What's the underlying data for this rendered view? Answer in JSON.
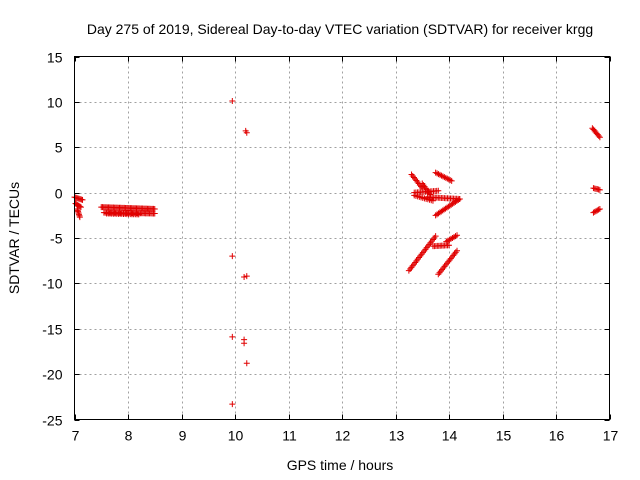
{
  "chart_data": {
    "type": "scatter",
    "title": "Day 275 of 2019, Sidereal Day-to-day VTEC variation (SDTVAR) for receiver krgg",
    "xlabel": "GPS time / hours",
    "ylabel": "SDTVAR / TECUs",
    "xlim": [
      7,
      17
    ],
    "ylim": [
      -25,
      15
    ],
    "xticks": [
      7,
      8,
      9,
      10,
      11,
      12,
      13,
      14,
      15,
      16,
      17
    ],
    "yticks": [
      -25,
      -20,
      -15,
      -10,
      -5,
      0,
      5,
      10,
      15
    ],
    "grid": true,
    "marker": "+",
    "color": "#e00000",
    "singles": [
      {
        "x": 9.95,
        "y": 10.1
      },
      {
        "x": 10.2,
        "y": 6.8
      },
      {
        "x": 10.22,
        "y": 6.6
      },
      {
        "x": 9.95,
        "y": -7.0
      },
      {
        "x": 10.17,
        "y": -9.3
      },
      {
        "x": 10.22,
        "y": -9.2
      },
      {
        "x": 9.95,
        "y": -15.9
      },
      {
        "x": 10.17,
        "y": -16.2
      },
      {
        "x": 10.17,
        "y": -16.6
      },
      {
        "x": 10.22,
        "y": -18.8
      },
      {
        "x": 9.95,
        "y": -23.3
      }
    ],
    "segments": [
      {
        "x0": 7.0,
        "y0": -0.5,
        "x1": 7.15,
        "y1": -0.8,
        "n": 8
      },
      {
        "x0": 7.02,
        "y0": -1.2,
        "x1": 7.12,
        "y1": -1.6,
        "n": 6
      },
      {
        "x0": 7.05,
        "y0": -1.8,
        "x1": 7.1,
        "y1": -2.7,
        "n": 7
      },
      {
        "x0": 7.5,
        "y0": -1.6,
        "x1": 8.5,
        "y1": -1.8,
        "n": 45
      },
      {
        "x0": 7.55,
        "y0": -2.2,
        "x1": 8.5,
        "y1": -2.3,
        "n": 40
      },
      {
        "x0": 7.6,
        "y0": -2.3,
        "x1": 8.2,
        "y1": -2.4,
        "n": 20
      },
      {
        "x0": 13.3,
        "y0": 2.0,
        "x1": 13.5,
        "y1": 0.5,
        "n": 10
      },
      {
        "x0": 13.35,
        "y0": 0.0,
        "x1": 13.8,
        "y1": 0.2,
        "n": 16
      },
      {
        "x0": 13.35,
        "y0": -0.3,
        "x1": 13.7,
        "y1": -0.9,
        "n": 12
      },
      {
        "x0": 13.5,
        "y0": 1.0,
        "x1": 13.65,
        "y1": -0.2,
        "n": 8
      },
      {
        "x0": 13.75,
        "y0": 2.2,
        "x1": 14.05,
        "y1": 1.3,
        "n": 12
      },
      {
        "x0": 13.6,
        "y0": -0.5,
        "x1": 14.2,
        "y1": -0.7,
        "n": 22
      },
      {
        "x0": 13.75,
        "y0": -2.5,
        "x1": 14.2,
        "y1": -0.7,
        "n": 18
      },
      {
        "x0": 13.25,
        "y0": -8.6,
        "x1": 13.75,
        "y1": -4.8,
        "n": 22
      },
      {
        "x0": 13.7,
        "y0": -5.9,
        "x1": 14.0,
        "y1": -5.8,
        "n": 12
      },
      {
        "x0": 13.95,
        "y0": -5.4,
        "x1": 14.15,
        "y1": -4.7,
        "n": 8
      },
      {
        "x0": 13.8,
        "y0": -9.0,
        "x1": 14.15,
        "y1": -6.4,
        "n": 16
      },
      {
        "x0": 16.68,
        "y0": 7.1,
        "x1": 16.82,
        "y1": 6.1,
        "n": 8
      },
      {
        "x0": 16.7,
        "y0": 0.5,
        "x1": 16.82,
        "y1": 0.3,
        "n": 6
      },
      {
        "x0": 16.7,
        "y0": -2.2,
        "x1": 16.82,
        "y1": -1.8,
        "n": 6
      }
    ]
  }
}
